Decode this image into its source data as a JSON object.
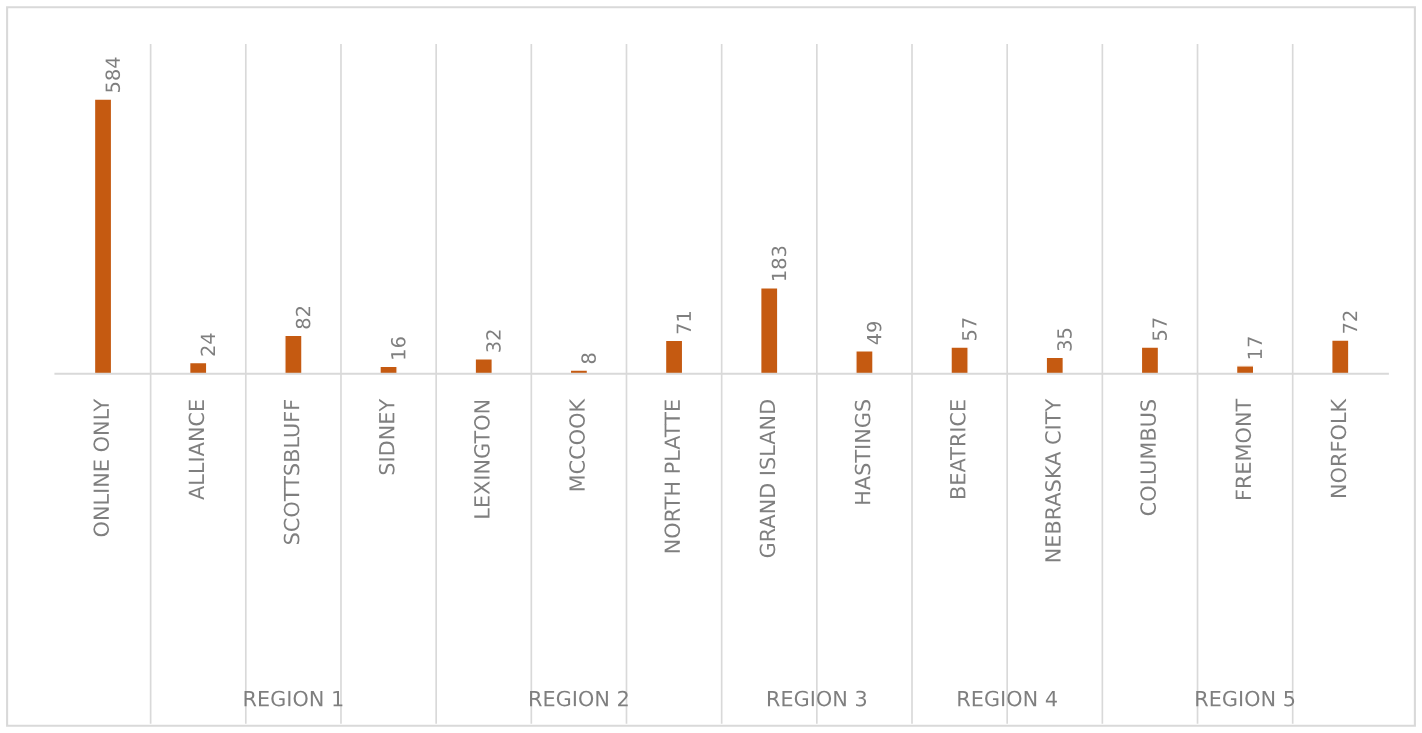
{
  "chart_data": {
    "type": "bar",
    "categories": [
      "ONLINE ONLY",
      "ALLIANCE",
      "SCOTTSBLUFF",
      "SIDNEY",
      "LEXINGTON",
      "MCCOOK",
      "NORTH PLATTE",
      "GRAND ISLAND",
      "HASTINGS",
      "BEATRICE",
      "NEBRASKA CITY",
      "COLUMBUS",
      "FREMONT",
      "NORFOLK"
    ],
    "values": [
      584,
      24,
      82,
      16,
      32,
      8,
      71,
      183,
      49,
      57,
      35,
      57,
      17,
      72
    ],
    "color": "#c55a11",
    "data_labels": true,
    "grid": "x",
    "legend": false,
    "tick_labels": "x",
    "annotations": [
      "REGION 1",
      "REGION 2",
      "REGION 3",
      "REGION 4",
      "REGION 5"
    ]
  }
}
